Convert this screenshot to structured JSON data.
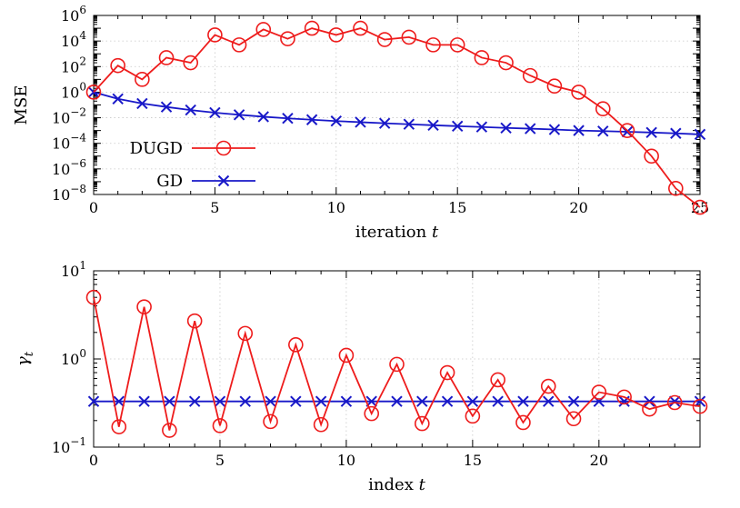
{
  "chart_data": [
    {
      "type": "line",
      "xlabel": "iteration",
      "xlabel_var": "t",
      "ylabel": "MSE",
      "xlim": [
        0,
        25
      ],
      "yscale": "log",
      "ylim": [
        1e-08,
        1000000.0
      ],
      "x_ticks": [
        "0",
        "5",
        "10",
        "15",
        "20",
        "25"
      ],
      "y_ticks": [
        {
          "base": "10",
          "exp": "6"
        },
        {
          "base": "10",
          "exp": "4"
        },
        {
          "base": "10",
          "exp": "2"
        },
        {
          "base": "10",
          "exp": "0"
        },
        {
          "base": "10",
          "exp": "−2"
        },
        {
          "base": "10",
          "exp": "−4"
        },
        {
          "base": "10",
          "exp": "−6"
        },
        {
          "base": "10",
          "exp": "−8"
        }
      ],
      "grid": true,
      "legend_position": "bottom-left",
      "series": [
        {
          "name": "DUGD",
          "color": "#ee1c1c",
          "marker": "circle",
          "x": [
            0,
            1,
            2,
            3,
            4,
            5,
            6,
            7,
            8,
            9,
            10,
            11,
            12,
            13,
            14,
            15,
            16,
            17,
            18,
            19,
            20,
            21,
            22,
            23,
            24,
            25
          ],
          "y": [
            1,
            120,
            10,
            500,
            200,
            30000,
            5000,
            80000,
            15000,
            100000,
            30000,
            100000,
            13000,
            20000,
            5000,
            5000,
            500,
            200,
            20,
            3,
            1,
            0.05,
            0.001,
            1e-05,
            3e-08,
            1e-09
          ]
        },
        {
          "name": "GD",
          "color": "#1818c8",
          "marker": "x",
          "x": [
            0,
            1,
            2,
            3,
            4,
            5,
            6,
            7,
            8,
            9,
            10,
            11,
            12,
            13,
            14,
            15,
            16,
            17,
            18,
            19,
            20,
            21,
            22,
            23,
            24,
            25
          ],
          "y": [
            1,
            0.3,
            0.13,
            0.07,
            0.04,
            0.025,
            0.017,
            0.012,
            0.009,
            0.007,
            0.0055,
            0.0045,
            0.0037,
            0.0031,
            0.0026,
            0.0022,
            0.0019,
            0.0016,
            0.0014,
            0.0012,
            0.001,
            0.0009,
            0.0008,
            0.0007,
            0.0006,
            0.0005
          ]
        }
      ]
    },
    {
      "type": "line",
      "xlabel": "index",
      "xlabel_var": "t",
      "ylabel_var": "γ",
      "ylabel_sub": "t",
      "xlim": [
        0,
        24
      ],
      "yscale": "log",
      "ylim": [
        0.1,
        10
      ],
      "x_ticks": [
        "0",
        "5",
        "10",
        "15",
        "20"
      ],
      "y_ticks": [
        {
          "base": "10",
          "exp": "1"
        },
        {
          "base": "10",
          "exp": "0"
        },
        {
          "base": "10",
          "exp": "−1"
        }
      ],
      "grid": true,
      "series": [
        {
          "name": "DUGD",
          "color": "#ee1c1c",
          "marker": "circle",
          "x": [
            0,
            1,
            2,
            3,
            4,
            5,
            6,
            7,
            8,
            9,
            10,
            11,
            12,
            13,
            14,
            15,
            16,
            17,
            18,
            19,
            20,
            21,
            22,
            23,
            24
          ],
          "y": [
            5.0,
            0.17,
            3.9,
            0.155,
            2.7,
            0.175,
            1.95,
            0.195,
            1.45,
            0.18,
            1.1,
            0.24,
            0.87,
            0.185,
            0.7,
            0.225,
            0.58,
            0.19,
            0.49,
            0.21,
            0.42,
            0.37,
            0.27,
            0.32,
            0.29
          ]
        },
        {
          "name": "GD",
          "color": "#1818c8",
          "marker": "x",
          "x": [
            0,
            1,
            2,
            3,
            4,
            5,
            6,
            7,
            8,
            9,
            10,
            11,
            12,
            13,
            14,
            15,
            16,
            17,
            18,
            19,
            20,
            21,
            22,
            23,
            24
          ],
          "y": [
            0.33,
            0.33,
            0.33,
            0.33,
            0.33,
            0.33,
            0.33,
            0.33,
            0.33,
            0.33,
            0.33,
            0.33,
            0.33,
            0.33,
            0.33,
            0.33,
            0.33,
            0.33,
            0.33,
            0.33,
            0.33,
            0.33,
            0.33,
            0.33,
            0.33
          ]
        }
      ]
    }
  ]
}
